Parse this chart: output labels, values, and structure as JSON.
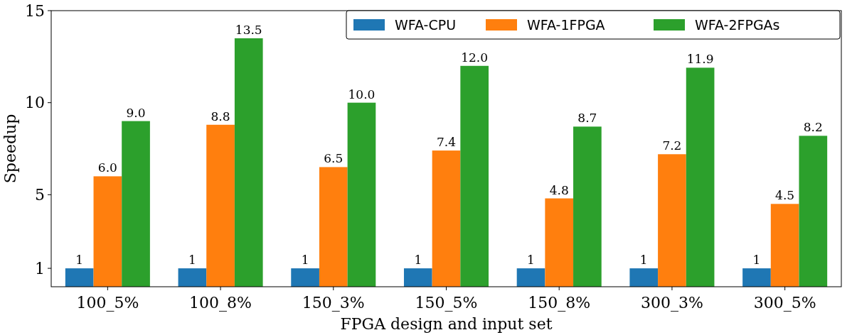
{
  "chart_data": {
    "type": "bar",
    "xlabel": "FPGA design and input set",
    "ylabel": "Speedup",
    "categories": [
      "100_5%",
      "100_8%",
      "150_3%",
      "150_5%",
      "150_8%",
      "300_3%",
      "300_5%"
    ],
    "series": [
      {
        "name": "WFA-CPU",
        "color": "#1f77b4",
        "values": [
          1,
          1,
          1,
          1,
          1,
          1,
          1
        ],
        "value_labels": [
          "1",
          "1",
          "1",
          "1",
          "1",
          "1",
          "1"
        ]
      },
      {
        "name": "WFA-1FPGA",
        "color": "#ff7f0e",
        "values": [
          6.0,
          8.8,
          6.5,
          7.4,
          4.8,
          7.2,
          4.5
        ],
        "value_labels": [
          "6.0",
          "8.8",
          "6.5",
          "7.4",
          "4.8",
          "7.2",
          "4.5"
        ]
      },
      {
        "name": "WFA-2FPGAs",
        "color": "#2ca02c",
        "values": [
          9.0,
          13.5,
          10.0,
          12.0,
          8.7,
          11.9,
          8.2
        ],
        "value_labels": [
          "9.0",
          "13.5",
          "10.0",
          "12.0",
          "8.7",
          "11.9",
          "8.2"
        ]
      }
    ],
    "ylim": [
      0,
      15
    ],
    "yticks": [
      1,
      5,
      10,
      15
    ],
    "grid": false,
    "legend": "top right"
  }
}
